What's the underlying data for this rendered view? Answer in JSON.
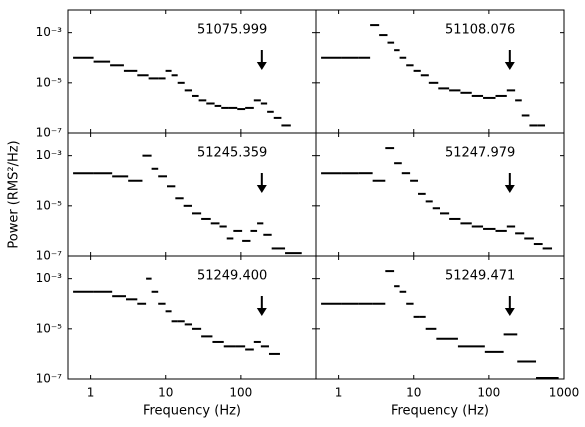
{
  "chart_data": [
    {
      "type": "scatter",
      "title": "51075.999",
      "color": "#000000",
      "arrow": 190,
      "log_x": true,
      "log_y": true,
      "x": [
        0.8,
        1.5,
        2.2,
        3.5,
        5,
        7,
        9,
        11,
        13,
        16,
        20,
        25,
        30,
        40,
        50,
        60,
        80,
        100,
        130,
        170,
        200,
        250,
        300,
        400
      ],
      "values": [
        0.0001,
        7e-05,
        5e-05,
        3e-05,
        2e-05,
        1.5e-05,
        1.5e-05,
        3e-05,
        2e-05,
        1e-05,
        5e-06,
        3e-06,
        2e-06,
        1.5e-06,
        1.2e-06,
        1e-06,
        1e-06,
        9e-07,
        1e-06,
        2e-06,
        1.5e-06,
        7e-07,
        4e-07,
        2e-07
      ],
      "xlim": [
        0.5,
        1000
      ],
      "ylim": [
        1e-07,
        0.008
      ],
      "yticks": [
        {
          "value": 0.001,
          "label": "10⁻³"
        },
        {
          "value": 1e-05,
          "label": "10⁻⁵"
        },
        {
          "value": 1e-07,
          "label": "10⁻⁷"
        }
      ]
    },
    {
      "type": "scatter",
      "title": "51108.076",
      "color": "#000000",
      "arrow": 190,
      "log_x": true,
      "log_y": true,
      "x": [
        0.8,
        1.5,
        2.3,
        3,
        4,
        5,
        6,
        7,
        9,
        11,
        14,
        18,
        25,
        35,
        50,
        70,
        100,
        150,
        200,
        250,
        300,
        400,
        500
      ],
      "values": [
        0.0001,
        0.0001,
        0.0001,
        0.002,
        0.0008,
        0.0004,
        0.0002,
        0.0001,
        5e-05,
        3e-05,
        2e-05,
        1e-05,
        6e-06,
        5e-06,
        4e-06,
        3e-06,
        2.5e-06,
        3e-06,
        5e-06,
        2e-06,
        5e-07,
        2e-07,
        2e-07
      ],
      "xlim": [
        0.5,
        1000
      ],
      "ylim": [
        1e-07,
        0.008
      ]
    },
    {
      "type": "scatter",
      "title": "51245.359",
      "color": "#000000",
      "arrow": 190,
      "log_x": true,
      "log_y": true,
      "ylabel": "Power (RMS²/Hz)",
      "x": [
        0.8,
        1.5,
        2.5,
        4,
        6,
        7,
        9,
        12,
        15,
        20,
        25,
        35,
        45,
        60,
        70,
        90,
        120,
        150,
        180,
        220,
        300,
        500
      ],
      "values": [
        0.0002,
        0.0002,
        0.00015,
        0.0001,
        0.001,
        0.0003,
        0.00015,
        6e-05,
        2e-05,
        1e-05,
        5e-06,
        3e-06,
        2e-06,
        1.5e-06,
        5e-07,
        1e-06,
        4e-07,
        1e-06,
        2e-06,
        7e-07,
        2e-07,
        1.3e-07
      ],
      "xlim": [
        0.5,
        1000
      ],
      "ylim": [
        1e-07,
        0.008
      ],
      "yticks": [
        {
          "value": 0.001,
          "label": "10⁻³"
        },
        {
          "value": 1e-05,
          "label": "10⁻⁵"
        },
        {
          "value": 1e-07,
          "label": "10⁻⁷"
        }
      ]
    },
    {
      "type": "scatter",
      "title": "51247.979",
      "color": "#000000",
      "arrow": 190,
      "log_x": true,
      "log_y": true,
      "x": [
        0.8,
        1.5,
        2.3,
        3.5,
        5,
        6,
        8,
        10,
        13,
        16,
        20,
        25,
        35,
        50,
        70,
        100,
        150,
        200,
        250,
        350,
        450,
        600
      ],
      "values": [
        0.0002,
        0.0002,
        0.0002,
        0.0001,
        0.002,
        0.0005,
        0.0002,
        0.0001,
        3e-05,
        1.5e-05,
        8e-06,
        5e-06,
        3e-06,
        2e-06,
        1.5e-06,
        1.2e-06,
        1e-06,
        1.5e-06,
        8e-07,
        5e-07,
        3e-07,
        2e-07
      ],
      "xlim": [
        0.5,
        1000
      ],
      "ylim": [
        1e-07,
        0.008
      ]
    },
    {
      "type": "scatter",
      "title": "51249.400",
      "color": "#000000",
      "arrow": 190,
      "log_x": true,
      "log_y": true,
      "xlabel": "Frequency (Hz)",
      "x": [
        0.8,
        1.5,
        2.5,
        3.5,
        5,
        6,
        7,
        9,
        11,
        13,
        16,
        20,
        25,
        35,
        50,
        70,
        100,
        130,
        170,
        200,
        280
      ],
      "values": [
        0.0003,
        0.0003,
        0.0002,
        0.00015,
        0.0001,
        0.001,
        0.0003,
        0.0001,
        5e-05,
        2e-05,
        2e-05,
        1.5e-05,
        1e-05,
        5e-06,
        3e-06,
        2e-06,
        2e-06,
        1.5e-06,
        3e-06,
        2e-06,
        1e-06
      ],
      "xlim": [
        0.5,
        1000
      ],
      "ylim": [
        1e-07,
        0.008
      ],
      "xticks": [
        1,
        10,
        100
      ],
      "yticks": [
        {
          "value": 0.001,
          "label": "10⁻³"
        },
        {
          "value": 1e-05,
          "label": "10⁻⁵"
        },
        {
          "value": 1e-07,
          "label": "10⁻⁷"
        }
      ]
    },
    {
      "type": "scatter",
      "title": "51249.471",
      "color": "#000000",
      "arrow": 190,
      "log_x": true,
      "log_y": true,
      "xlabel": "Frequency (Hz)",
      "x": [
        0.8,
        1.5,
        2.3,
        3.5,
        5,
        6,
        7,
        9,
        11,
        13,
        16,
        25,
        60,
        130,
        190,
        300,
        600
      ],
      "values": [
        0.0001,
        0.0001,
        0.0001,
        0.0001,
        0.002,
        0.0005,
        0.0003,
        0.0001,
        3e-05,
        3e-05,
        1e-05,
        4e-06,
        2e-06,
        1.2e-06,
        6e-06,
        5e-07,
        1.1e-07
      ],
      "xlim": [
        0.5,
        1000
      ],
      "ylim": [
        1e-07,
        0.008
      ],
      "xticks": [
        1,
        10,
        100,
        1000
      ]
    }
  ]
}
